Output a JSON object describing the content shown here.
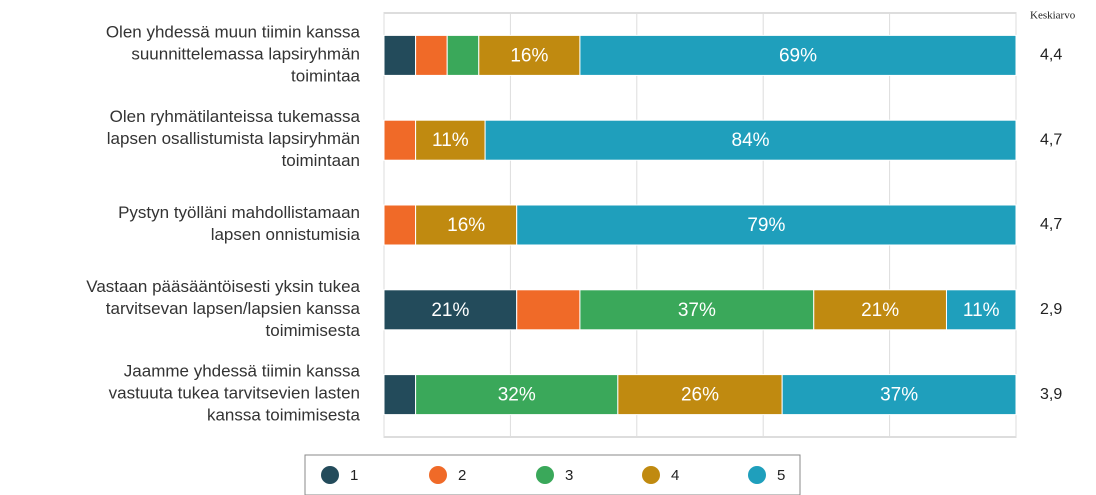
{
  "chart_data": {
    "type": "stacked_barh",
    "categories": [
      "Olen yhdessä muun tiimin kanssa\nsuunnittelemassa lapsiryhmän\ntoimintaa",
      "Olen ryhmätilanteissa tukemassa\nlapsen osallistumista lapsiryhmän\ntoimintaan",
      "Pystyn työlläni mahdollistamaan\nlapsen onnistumisia",
      "Vastaan pääsääntöisesti yksin tukea\ntarvitsevan lapsen/lapsien kanssa\ntoimimisesta",
      "Jaamme yhdessä tiimin kanssa\nvastuuta tukea tarvitsevien lasten\nkanssa toimimisesta"
    ],
    "series": [
      {
        "name": "1",
        "color": "#234b5b",
        "values": [
          5,
          0,
          0,
          21,
          5
        ],
        "value_labels": [
          null,
          null,
          null,
          "21%",
          null
        ]
      },
      {
        "name": "2",
        "color": "#f06a28",
        "values": [
          5,
          5,
          5,
          10,
          0
        ],
        "value_labels": [
          null,
          null,
          null,
          null,
          null
        ]
      },
      {
        "name": "3",
        "color": "#3aa85a",
        "values": [
          5,
          0,
          0,
          37,
          32
        ],
        "value_labels": [
          null,
          null,
          null,
          "37%",
          "32%"
        ]
      },
      {
        "name": "4",
        "color": "#c08a10",
        "values": [
          16,
          11,
          16,
          21,
          26
        ],
        "value_labels": [
          "16%",
          "11%",
          "16%",
          "21%",
          "26%"
        ]
      },
      {
        "name": "5",
        "color": "#1f9fbc",
        "values": [
          69,
          84,
          79,
          11,
          37
        ],
        "value_labels": [
          "69%",
          "84%",
          "79%",
          "11%",
          "37%"
        ]
      }
    ],
    "means": {
      "title": "Keskiarvo",
      "values": [
        4.4,
        4.7,
        4.7,
        2.9,
        3.9
      ],
      "value_labels": [
        "4,4",
        "4,7",
        "4,7",
        "2,9",
        "3,9"
      ]
    },
    "xlim": [
      0,
      100
    ],
    "xticks": [
      0,
      20,
      40,
      60,
      80,
      100
    ],
    "grid": true
  }
}
